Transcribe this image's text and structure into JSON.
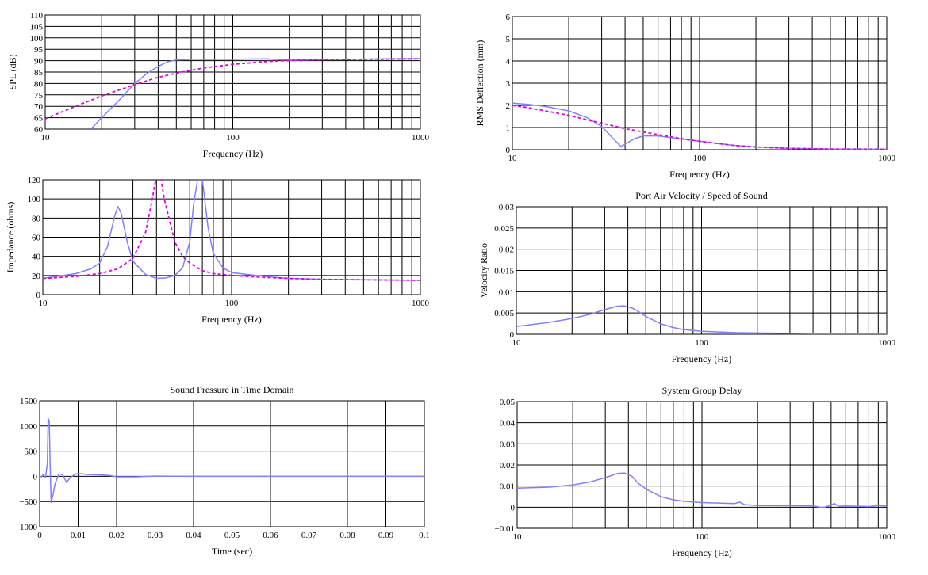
{
  "colors": {
    "series_solid": "#7f7fff",
    "series_dashed": "#e000e0",
    "grid": "#000000"
  },
  "chart_data": [
    {
      "id": "spl",
      "type": "line",
      "title": "",
      "xlabel": "Frequency (Hz)",
      "ylabel": "SPL (dB)",
      "xscale": "log",
      "xlim": [
        10,
        1000
      ],
      "ylim": [
        60,
        110
      ],
      "xticks": [
        10,
        100,
        1000
      ],
      "xtick_labels": [
        "10",
        "100",
        "1000"
      ],
      "yticks": [
        60,
        65,
        70,
        75,
        80,
        85,
        90,
        95,
        100,
        105,
        110
      ],
      "ytick_labels": [
        "60",
        "65",
        "70",
        "75",
        "80",
        "85",
        "90",
        "95",
        "100",
        "105",
        "110"
      ],
      "grid": true,
      "series": [
        {
          "style": "solid",
          "color": "#7f7fff",
          "x": [
            17.5,
            20,
            25,
            30,
            35,
            40,
            45,
            50,
            60,
            80,
            100,
            150,
            200,
            300,
            500,
            700,
            1000
          ],
          "y": [
            60,
            65,
            73,
            80,
            84.5,
            87.5,
            89.5,
            90.3,
            90.6,
            90.6,
            90.6,
            90.8,
            90.2,
            90.4,
            90.7,
            90.8,
            90.9
          ]
        },
        {
          "style": "dashed",
          "color": "#e000e0",
          "x": [
            10,
            15,
            20,
            30,
            40,
            50,
            70,
            100,
            150,
            200,
            300,
            500,
            700,
            1000
          ],
          "y": [
            64.5,
            70.5,
            74.5,
            79.5,
            82.7,
            84.5,
            86.8,
            88.4,
            89.6,
            90.1,
            90.4,
            90.6,
            90.7,
            90.8
          ]
        }
      ]
    },
    {
      "id": "rms",
      "type": "line",
      "title": "",
      "xlabel": "Frequency (Hz)",
      "ylabel": "RMS Deflection (mm)",
      "xscale": "log",
      "xlim": [
        10,
        1000
      ],
      "ylim": [
        0,
        6
      ],
      "xticks": [
        10,
        100,
        1000
      ],
      "xtick_labels": [
        "10",
        "100",
        "1000"
      ],
      "yticks": [
        0,
        1,
        2,
        3,
        4,
        5,
        6
      ],
      "ytick_labels": [
        "0",
        "1",
        "2",
        "3",
        "4",
        "5",
        "6"
      ],
      "grid": true,
      "series": [
        {
          "style": "solid",
          "color": "#7f7fff",
          "x": [
            10,
            12,
            15,
            20,
            25,
            30,
            35,
            38,
            40,
            45,
            50,
            60,
            70,
            100,
            150,
            200,
            300,
            500,
            1000
          ],
          "y": [
            2.1,
            2.05,
            1.95,
            1.75,
            1.45,
            1.05,
            0.45,
            0.15,
            0.25,
            0.5,
            0.62,
            0.62,
            0.55,
            0.38,
            0.2,
            0.12,
            0.06,
            0.03,
            0.02
          ]
        },
        {
          "style": "dashed",
          "color": "#e000e0",
          "x": [
            10,
            12,
            15,
            20,
            25,
            30,
            40,
            50,
            60,
            80,
            100,
            150,
            200,
            300,
            500,
            1000
          ],
          "y": [
            2.0,
            1.9,
            1.75,
            1.55,
            1.35,
            1.2,
            0.95,
            0.8,
            0.68,
            0.5,
            0.38,
            0.2,
            0.12,
            0.06,
            0.03,
            0.02
          ]
        }
      ]
    },
    {
      "id": "impedance",
      "type": "line",
      "title": "",
      "xlabel": "Frequency (Hz)",
      "ylabel": "Impedance (ohms)",
      "xscale": "log",
      "xlim": [
        10,
        1000
      ],
      "ylim": [
        0,
        120
      ],
      "xticks": [
        10,
        100,
        1000
      ],
      "xtick_labels": [
        "10",
        "100",
        "1000"
      ],
      "yticks": [
        0,
        20,
        40,
        60,
        80,
        100,
        120
      ],
      "ytick_labels": [
        "0",
        "20",
        "40",
        "60",
        "80",
        "100",
        "120"
      ],
      "grid": true,
      "series": [
        {
          "style": "solid",
          "color": "#7f7fff",
          "x": [
            10,
            15,
            18,
            20,
            22,
            24,
            25,
            26,
            28,
            30,
            35,
            40,
            45,
            50,
            55,
            60,
            63,
            66,
            68,
            70,
            72,
            75,
            80,
            90,
            100,
            150,
            200,
            300,
            500,
            1000
          ],
          "y": [
            17,
            22,
            27,
            33,
            50,
            82,
            92,
            85,
            55,
            35,
            21,
            17,
            17.5,
            20,
            28,
            55,
            95,
            120,
            125,
            120,
            100,
            70,
            43,
            28,
            23,
            19,
            17,
            16,
            15.5,
            15
          ]
        },
        {
          "style": "dashed",
          "color": "#e000e0",
          "x": [
            10,
            15,
            20,
            25,
            30,
            35,
            38,
            40,
            42,
            44,
            50,
            55,
            60,
            70,
            80,
            100,
            150,
            200,
            300,
            500,
            1000
          ],
          "y": [
            17,
            19,
            22,
            27,
            38,
            65,
            100,
            125,
            125,
            100,
            55,
            40,
            33,
            25,
            22,
            20,
            18,
            17,
            16,
            15.5,
            15
          ]
        }
      ]
    },
    {
      "id": "port",
      "type": "line",
      "title": "Port Air Velocity / Speed of Sound",
      "xlabel": "Frequency (Hz)",
      "ylabel": "Velocity Ratio",
      "xscale": "log",
      "xlim": [
        10,
        1000
      ],
      "ylim": [
        0,
        0.03
      ],
      "xticks": [
        10,
        100,
        1000
      ],
      "xtick_labels": [
        "10",
        "100",
        "1000"
      ],
      "yticks": [
        0,
        0.005,
        0.01,
        0.015,
        0.02,
        0.025,
        0.03
      ],
      "ytick_labels": [
        "0",
        "0.005",
        "0.01",
        "0.015",
        "0.02",
        "0.025",
        "0.03"
      ],
      "grid": true,
      "series": [
        {
          "style": "solid",
          "color": "#7f7fff",
          "x": [
            10,
            15,
            20,
            25,
            30,
            35,
            38,
            42,
            45,
            50,
            60,
            70,
            80,
            100,
            150,
            200,
            300,
            500,
            1000
          ],
          "y": [
            0.0018,
            0.0028,
            0.0037,
            0.0047,
            0.0058,
            0.0066,
            0.0067,
            0.0062,
            0.0055,
            0.0042,
            0.0025,
            0.0016,
            0.0011,
            0.0007,
            0.0004,
            0.0003,
            0.0002,
            0.0001,
            0.0001
          ]
        }
      ]
    },
    {
      "id": "time",
      "type": "line",
      "title": "Sound Pressure in Time Domain",
      "xlabel": "Time (sec)",
      "ylabel": "",
      "xscale": "linear",
      "xlim": [
        0,
        0.1
      ],
      "ylim": [
        -1000,
        1500
      ],
      "xticks": [
        0,
        0.01,
        0.02,
        0.03,
        0.04,
        0.05,
        0.06,
        0.07,
        0.08,
        0.09,
        0.1
      ],
      "xtick_labels": [
        "0",
        "0.01",
        "0.02",
        "0.03",
        "0.04",
        "0.05",
        "0.06",
        "0.07",
        "0.08",
        "0.09",
        "0.1"
      ],
      "yticks": [
        -1000,
        -500,
        0,
        500,
        1000,
        1500
      ],
      "ytick_labels": [
        "−1000",
        "−500",
        "0",
        "500",
        "1000",
        "1500"
      ],
      "grid": true,
      "series": [
        {
          "style": "solid",
          "color": "#7f7fff",
          "x": [
            0,
            0.0005,
            0.001,
            0.0015,
            0.002,
            0.0022,
            0.0025,
            0.0027,
            0.003,
            0.0035,
            0.004,
            0.005,
            0.006,
            0.007,
            0.008,
            0.009,
            0.01,
            0.012,
            0.015,
            0.018,
            0.02,
            0.025,
            0.03,
            0.04,
            0.06,
            0.1
          ],
          "y": [
            0,
            -10,
            40,
            -30,
            250,
            1150,
            1100,
            300,
            -520,
            -350,
            -150,
            50,
            30,
            -120,
            -20,
            30,
            60,
            40,
            30,
            20,
            -10,
            -10,
            5,
            0,
            0,
            0
          ]
        }
      ]
    },
    {
      "id": "delay",
      "type": "line",
      "title": "System Group Delay",
      "xlabel": "Frequency (Hz)",
      "ylabel": "",
      "xscale": "log",
      "xlim": [
        10,
        1000
      ],
      "ylim": [
        -0.01,
        0.05
      ],
      "xticks": [
        10,
        100,
        1000
      ],
      "xtick_labels": [
        "10",
        "100",
        "1000"
      ],
      "yticks": [
        -0.01,
        0,
        0.01,
        0.02,
        0.03,
        0.04,
        0.05
      ],
      "ytick_labels": [
        "−0.01",
        "0",
        "0.01",
        "0.02",
        "0.03",
        "0.04",
        "0.05"
      ],
      "grid": true,
      "series": [
        {
          "style": "solid",
          "color": "#7f7fff",
          "x": [
            10,
            15,
            20,
            25,
            30,
            35,
            38,
            42,
            45,
            50,
            60,
            70,
            80,
            100,
            150,
            160,
            170,
            200,
            300,
            400,
            450,
            500,
            520,
            550,
            600,
            800,
            900,
            1000
          ],
          "y": [
            0.009,
            0.0095,
            0.0105,
            0.012,
            0.014,
            0.016,
            0.0162,
            0.0145,
            0.0115,
            0.0085,
            0.005,
            0.0035,
            0.0028,
            0.0022,
            0.0017,
            0.0024,
            0.0012,
            0.0008,
            0.0007,
            0.0006,
            -0.0002,
            0.0009,
            0.0018,
            0.0004,
            0.0006,
            0.0003,
            0.0008,
            0.0005
          ]
        }
      ]
    }
  ]
}
